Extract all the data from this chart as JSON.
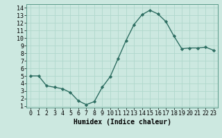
{
  "x": [
    0,
    1,
    2,
    3,
    4,
    5,
    6,
    7,
    8,
    9,
    10,
    11,
    12,
    13,
    14,
    15,
    16,
    17,
    18,
    19,
    20,
    21,
    22,
    23
  ],
  "y": [
    5.0,
    5.0,
    3.7,
    3.5,
    3.3,
    2.8,
    1.7,
    1.2,
    1.6,
    3.5,
    4.9,
    7.3,
    9.7,
    11.8,
    13.1,
    13.7,
    13.2,
    12.2,
    10.3,
    8.6,
    8.7,
    8.7,
    8.8,
    8.4
  ],
  "line_color": "#2e6e62",
  "marker": "D",
  "marker_size": 2.2,
  "bg_color": "#cce8e0",
  "grid_color": "#b0d8cc",
  "xlabel": "Humidex (Indice chaleur)",
  "xlim": [
    -0.5,
    23.5
  ],
  "ylim": [
    0.8,
    14.5
  ],
  "yticks": [
    1,
    2,
    3,
    4,
    5,
    6,
    7,
    8,
    9,
    10,
    11,
    12,
    13,
    14
  ],
  "xticks": [
    0,
    1,
    2,
    3,
    4,
    5,
    6,
    7,
    8,
    9,
    10,
    11,
    12,
    13,
    14,
    15,
    16,
    17,
    18,
    19,
    20,
    21,
    22,
    23
  ],
  "xlabel_fontsize": 7,
  "tick_fontsize": 6
}
